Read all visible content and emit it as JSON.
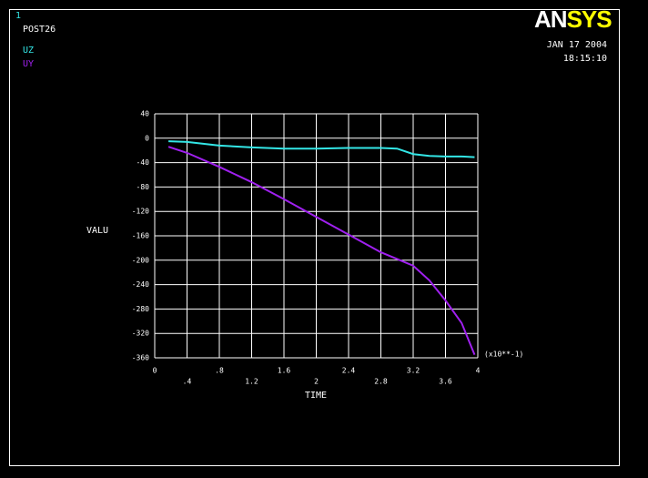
{
  "chart_data": {
    "type": "line",
    "window_number": "1",
    "title": "POST26",
    "logo": {
      "first": "AN",
      "second": "SYS"
    },
    "date": "JAN 17 2004",
    "time": "18:15:10",
    "x_label": "TIME",
    "y_label": "VALU",
    "x_multiplier": "(x10**-1)",
    "x": [
      0.17,
      0.4,
      0.8,
      1.2,
      1.6,
      2.0,
      2.4,
      2.8,
      3.0,
      3.2,
      3.4,
      3.6,
      3.8,
      3.96
    ],
    "series": [
      {
        "name": "UZ",
        "color": "#33e6e6",
        "values": [
          -5,
          -6,
          -12,
          -15,
          -17,
          -17,
          -16,
          -16,
          -17,
          -26,
          -29,
          -30,
          -30,
          -31
        ]
      },
      {
        "name": "UY",
        "color": "#a020f0",
        "values": [
          -14,
          -24,
          -47,
          -72,
          -100,
          -129,
          -158,
          -187,
          -198,
          -209,
          -233,
          -266,
          -303,
          -355
        ]
      }
    ],
    "xlim": [
      0,
      4
    ],
    "ylim": [
      -360,
      40
    ],
    "xticks": [
      0,
      {
        "value": 0.4,
        "label": ".4"
      },
      {
        "value": 0.8,
        "label": ".8"
      },
      1.2,
      1.6,
      2,
      2.4,
      2.8,
      3.2,
      3.6,
      4
    ],
    "yticks": [
      40,
      0,
      -40,
      -80,
      -120,
      -160,
      -200,
      -240,
      -280,
      -320,
      -360
    ],
    "grid": true
  }
}
